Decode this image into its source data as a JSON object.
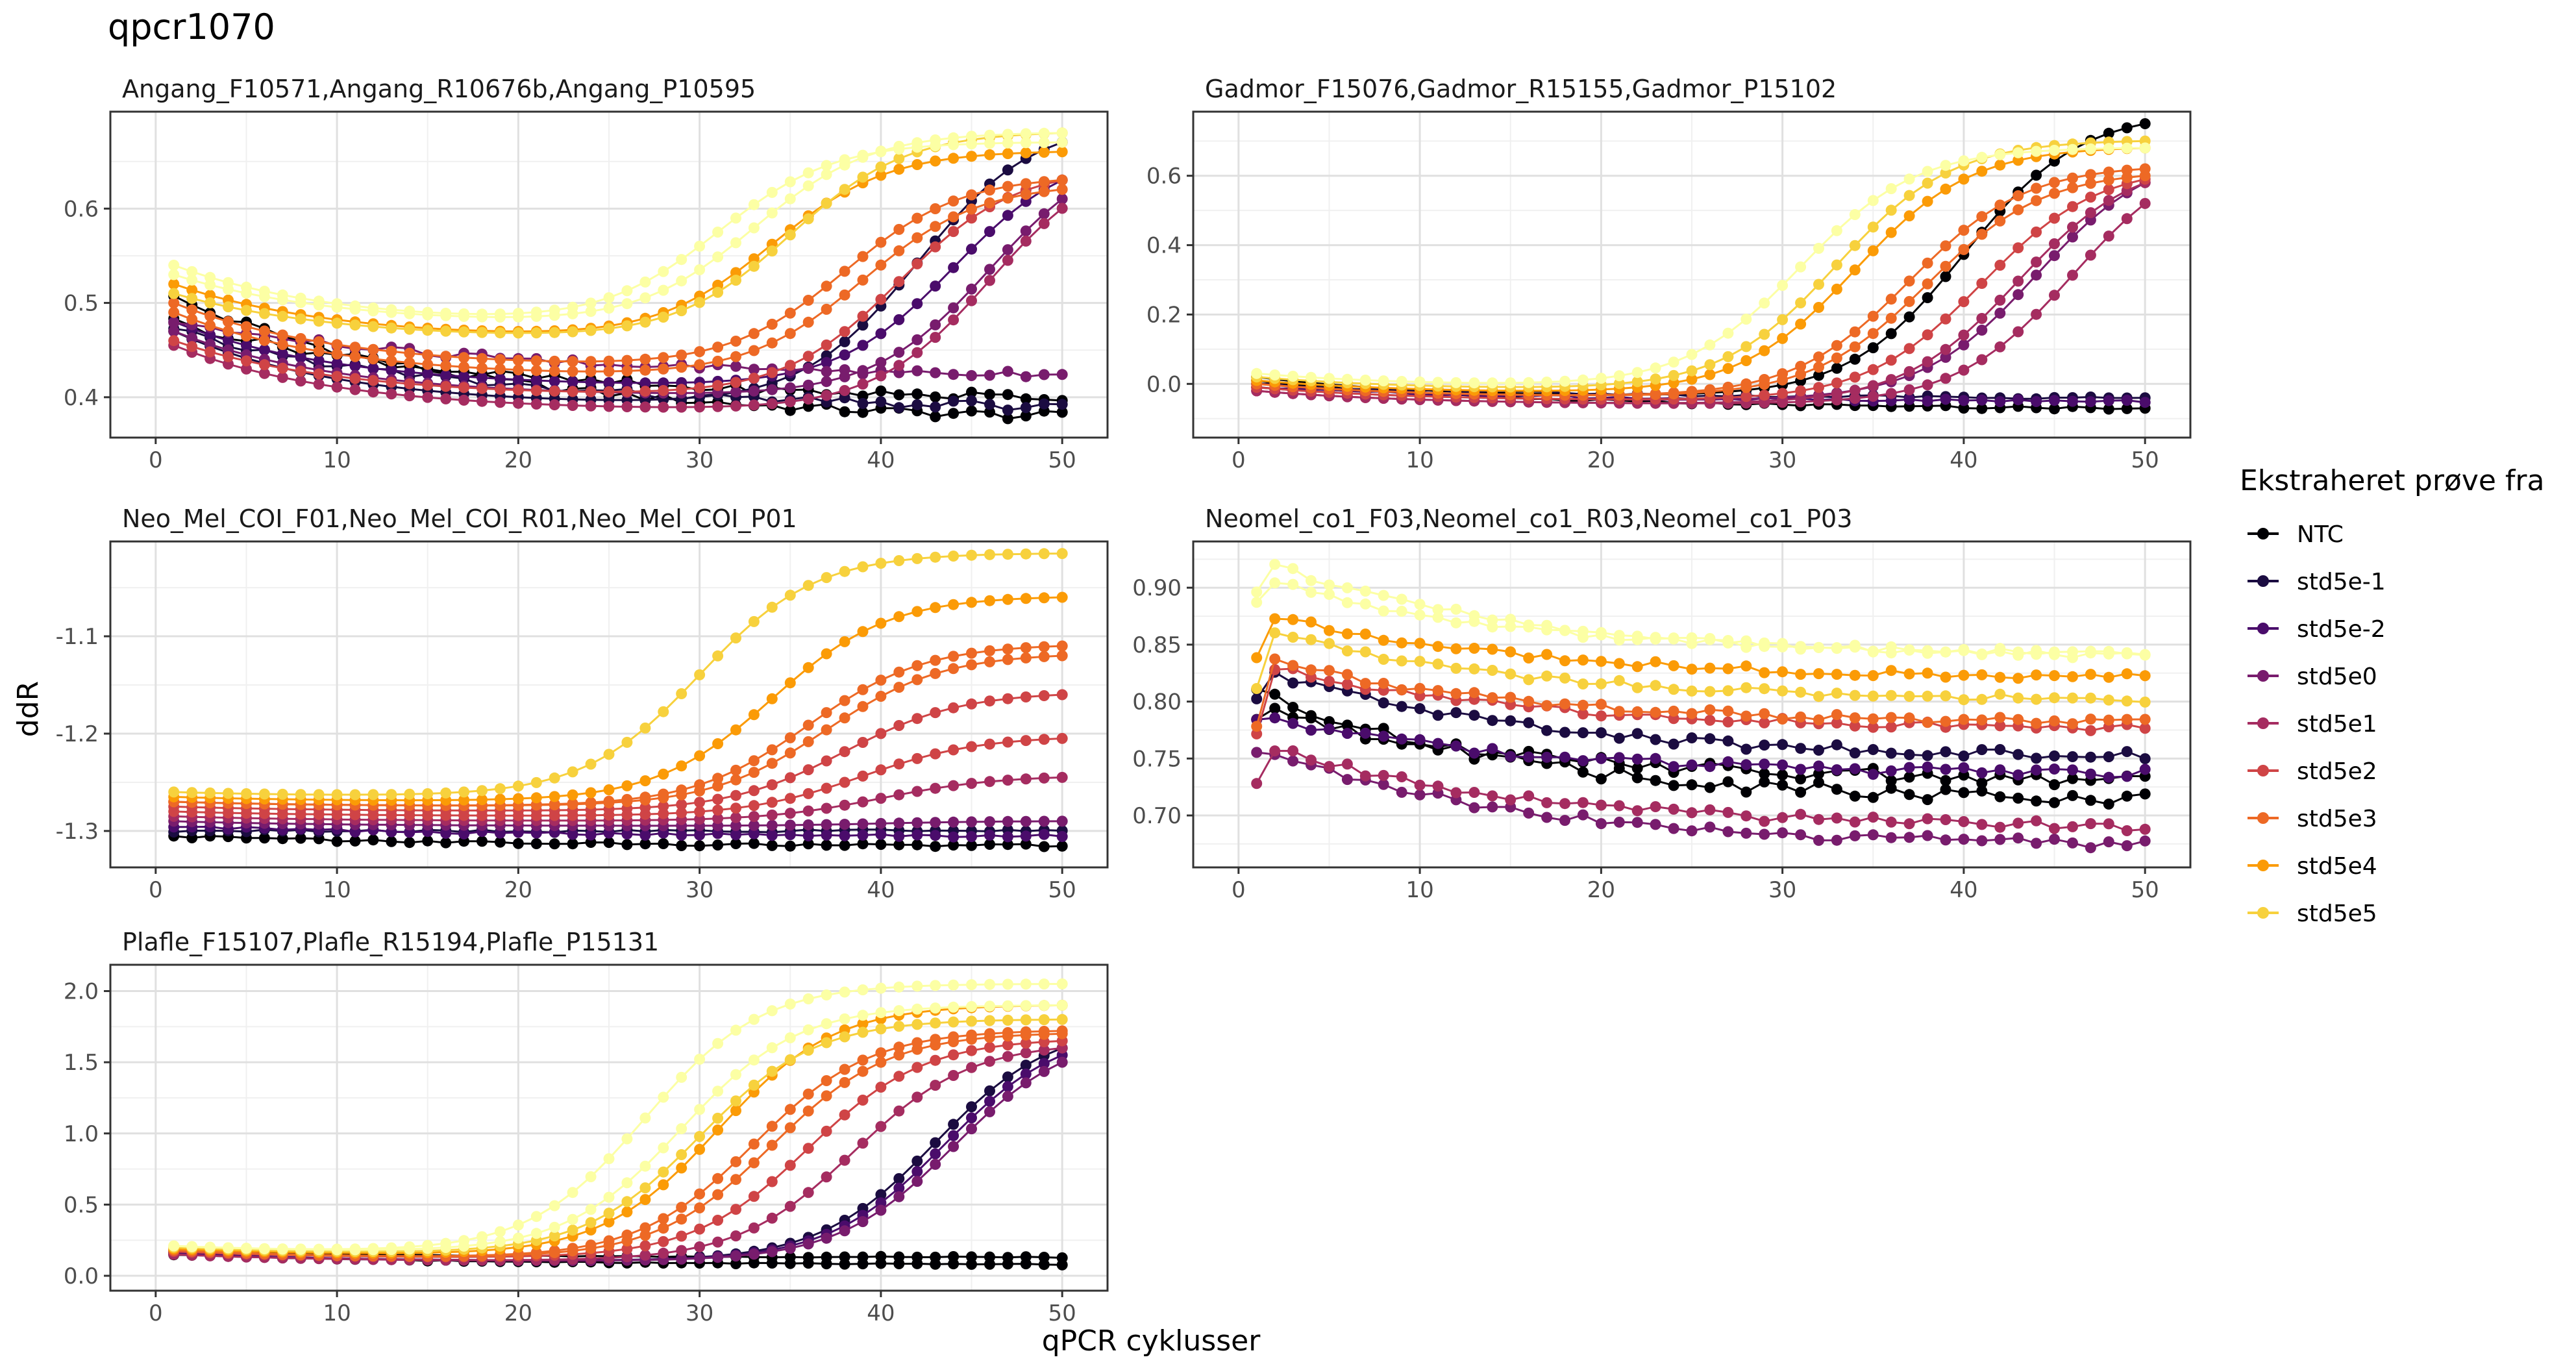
{
  "title": "qpcr1070",
  "xlabel": "qPCR cyklusser",
  "ylabel": "ddR",
  "legend": {
    "title": "Ekstraheret prøve fra",
    "entries": [
      {
        "label": "NTC",
        "color": "#000004"
      },
      {
        "label": "std5e-1",
        "color": "#1b0c41"
      },
      {
        "label": "std5e-2",
        "color": "#4a0c6b"
      },
      {
        "label": "std5e0",
        "color": "#781c6d"
      },
      {
        "label": "std5e1",
        "color": "#a52c60"
      },
      {
        "label": "std5e2",
        "color": "#cf4446"
      },
      {
        "label": "std5e3",
        "color": "#ed6925"
      },
      {
        "label": "std5e4",
        "color": "#fb9b06"
      },
      {
        "label": "std5e5",
        "color": "#f7d13d"
      }
    ]
  },
  "chart_data": [
    {
      "type": "line",
      "title": "Angang_F10571,Angang_R10676b,Angang_P10595",
      "xlim": [
        1,
        50
      ],
      "ylim": [
        0.37,
        0.69
      ],
      "xticks": [
        0,
        10,
        20,
        30,
        40,
        50
      ],
      "yticks": [
        0.4,
        0.5,
        0.6
      ],
      "series": [
        {
          "name": "NTC",
          "color": "#000004",
          "type": "flat",
          "start": 0.505,
          "end": 0.38,
          "jitter": 0.005
        },
        {
          "name": "NTC",
          "color": "#000004",
          "type": "flat",
          "start": 0.48,
          "end": 0.4,
          "jitter": 0.005
        },
        {
          "name": "std5e-1",
          "color": "#1b0c41",
          "type": "amp",
          "start": 0.47,
          "dip": 0.39,
          "ct": 42,
          "plateau": 0.67
        },
        {
          "name": "std5e-1",
          "color": "#1b0c41",
          "type": "flat",
          "start": 0.47,
          "end": 0.39,
          "jitter": 0.005
        },
        {
          "name": "std5e-2",
          "color": "#4a0c6b",
          "type": "amp",
          "start": 0.48,
          "dip": 0.41,
          "ct": 44,
          "plateau": 0.63
        },
        {
          "name": "std5e0",
          "color": "#781c6d",
          "type": "flat",
          "start": 0.48,
          "end": 0.425,
          "jitter": 0.004
        },
        {
          "name": "std5e0",
          "color": "#781c6d",
          "type": "amp",
          "start": 0.47,
          "dip": 0.4,
          "ct": 46,
          "plateau": 0.61
        },
        {
          "name": "std5e1",
          "color": "#a52c60",
          "type": "amp",
          "start": 0.455,
          "dip": 0.385,
          "ct": 46,
          "plateau": 0.6
        },
        {
          "name": "std5e2",
          "color": "#cf4446",
          "type": "amp",
          "start": 0.46,
          "dip": 0.4,
          "ct": 41,
          "plateau": 0.63
        },
        {
          "name": "std5e3",
          "color": "#ed6925",
          "type": "amp",
          "start": 0.5,
          "dip": 0.43,
          "ct": 38,
          "plateau": 0.63
        },
        {
          "name": "std5e3",
          "color": "#ed6925",
          "type": "amp",
          "start": 0.49,
          "dip": 0.42,
          "ct": 39,
          "plateau": 0.62
        },
        {
          "name": "std5e4",
          "color": "#fb9b06",
          "type": "amp",
          "start": 0.52,
          "dip": 0.46,
          "ct": 34,
          "plateau": 0.66
        },
        {
          "name": "std5e4",
          "color": "#f7d13d",
          "type": "amp",
          "start": 0.51,
          "dip": 0.46,
          "ct": 35,
          "plateau": 0.68
        },
        {
          "name": "std5e5",
          "color": "#fcffa4",
          "type": "amp",
          "start": 0.54,
          "dip": 0.475,
          "ct": 31,
          "plateau": 0.67
        },
        {
          "name": "std5e5",
          "color": "#fcffa4",
          "type": "amp",
          "start": 0.53,
          "dip": 0.475,
          "ct": 33,
          "plateau": 0.68
        }
      ]
    },
    {
      "type": "line",
      "title": "Gadmor_F15076,Gadmor_R15155,Gadmor_P15102",
      "xlim": [
        1,
        50
      ],
      "ylim": [
        -0.12,
        0.75
      ],
      "xticks": [
        0,
        10,
        20,
        30,
        40,
        50
      ],
      "yticks": [
        0.0,
        0.2,
        0.4,
        0.6
      ],
      "series": [
        {
          "name": "NTC",
          "color": "#000004",
          "type": "flat",
          "start": 0.01,
          "end": -0.07,
          "jitter": 0.004
        },
        {
          "name": "NTC",
          "color": "#000004",
          "type": "amp",
          "start": 0.02,
          "dip": -0.04,
          "ct": 40,
          "plateau": 0.75
        },
        {
          "name": "std5e-1",
          "color": "#1b0c41",
          "type": "flat",
          "start": 0.0,
          "end": -0.04,
          "jitter": 0.004
        },
        {
          "name": "std5e-2",
          "color": "#4a0c6b",
          "type": "flat",
          "start": -0.01,
          "end": -0.05,
          "jitter": 0.004
        },
        {
          "name": "std5e0",
          "color": "#781c6d",
          "type": "amp",
          "start": -0.01,
          "dip": -0.05,
          "ct": 44,
          "plateau": 0.58
        },
        {
          "name": "std5e1",
          "color": "#a52c60",
          "type": "amp",
          "start": -0.02,
          "dip": -0.06,
          "ct": 46,
          "plateau": 0.52
        },
        {
          "name": "std5e1",
          "color": "#a52c60",
          "type": "amp",
          "start": -0.02,
          "dip": -0.06,
          "ct": 43,
          "plateau": 0.58
        },
        {
          "name": "std5e2",
          "color": "#cf4446",
          "type": "amp",
          "start": -0.01,
          "dip": -0.05,
          "ct": 41,
          "plateau": 0.59
        },
        {
          "name": "std5e3",
          "color": "#ed6925",
          "type": "amp",
          "start": 0.0,
          "dip": -0.04,
          "ct": 38,
          "plateau": 0.6
        },
        {
          "name": "std5e3",
          "color": "#ed6925",
          "type": "amp",
          "start": 0.0,
          "dip": -0.04,
          "ct": 37,
          "plateau": 0.62
        },
        {
          "name": "std5e4",
          "color": "#fb9b06",
          "type": "amp",
          "start": 0.01,
          "dip": -0.03,
          "ct": 34,
          "plateau": 0.68
        },
        {
          "name": "std5e4",
          "color": "#f7d13d",
          "type": "amp",
          "start": 0.02,
          "dip": -0.02,
          "ct": 33,
          "plateau": 0.7
        },
        {
          "name": "std5e5",
          "color": "#fcffa4",
          "type": "amp",
          "start": 0.03,
          "dip": -0.01,
          "ct": 31,
          "plateau": 0.68
        }
      ]
    },
    {
      "type": "line",
      "title": "Neo_Mel_COI_F01,Neo_Mel_COI_R01,Neo_Mel_COI_P01",
      "xlim": [
        1,
        50
      ],
      "ylim": [
        -1.325,
        -1.015
      ],
      "xticks": [
        0,
        10,
        20,
        30,
        40,
        50
      ],
      "yticks": [
        -1.3,
        -1.2,
        -1.1
      ],
      "series": [
        {
          "name": "NTC",
          "color": "#000004",
          "type": "flat",
          "start": -1.305,
          "end": -1.315,
          "jitter": 0.0015
        },
        {
          "name": "std5e-1",
          "color": "#1b0c41",
          "type": "flat",
          "start": -1.3,
          "end": -1.3,
          "jitter": 0.0015
        },
        {
          "name": "std5e-2",
          "color": "#4a0c6b",
          "type": "flat",
          "start": -1.295,
          "end": -1.305,
          "jitter": 0.0015
        },
        {
          "name": "std5e0",
          "color": "#781c6d",
          "type": "amp",
          "start": -1.29,
          "dip": -1.295,
          "ct": 40,
          "plateau": -1.29
        },
        {
          "name": "std5e1",
          "color": "#a52c60",
          "type": "amp",
          "start": -1.285,
          "dip": -1.29,
          "ct": 40,
          "plateau": -1.245
        },
        {
          "name": "std5e2",
          "color": "#cf4446",
          "type": "amp",
          "start": -1.28,
          "dip": -1.285,
          "ct": 39,
          "plateau": -1.205
        },
        {
          "name": "std5e2",
          "color": "#cf4446",
          "type": "amp",
          "start": -1.275,
          "dip": -1.28,
          "ct": 38,
          "plateau": -1.16
        },
        {
          "name": "std5e3",
          "color": "#ed6925",
          "type": "amp",
          "start": -1.27,
          "dip": -1.275,
          "ct": 37,
          "plateau": -1.12
        },
        {
          "name": "std5e3",
          "color": "#ed6925",
          "type": "amp",
          "start": -1.27,
          "dip": -1.275,
          "ct": 36,
          "plateau": -1.11
        },
        {
          "name": "std5e4",
          "color": "#fb9b06",
          "type": "amp",
          "start": -1.265,
          "dip": -1.27,
          "ct": 34,
          "plateau": -1.06
        },
        {
          "name": "std5e4",
          "color": "#f7d13d",
          "type": "amp",
          "start": -1.26,
          "dip": -1.265,
          "ct": 30,
          "plateau": -1.015
        }
      ]
    },
    {
      "type": "line",
      "title": "Neomel_co1_F03,Neomel_co1_R03,Neomel_co1_P03",
      "xlim": [
        1,
        50
      ],
      "ylim": [
        0.665,
        0.93
      ],
      "xticks": [
        0,
        10,
        20,
        30,
        40,
        50
      ],
      "yticks": [
        0.7,
        0.75,
        0.8,
        0.85,
        0.9
      ],
      "series": [
        {
          "name": "NTC",
          "color": "#000004",
          "type": "decay",
          "start": 0.81,
          "peak": 0.805,
          "end": 0.712,
          "jitter": 0.006
        },
        {
          "name": "NTC",
          "color": "#000004",
          "type": "decay",
          "start": 0.79,
          "peak": 0.79,
          "end": 0.73,
          "jitter": 0.006
        },
        {
          "name": "std5e-1",
          "color": "#1b0c41",
          "type": "decay",
          "start": 0.8,
          "peak": 0.825,
          "end": 0.75,
          "jitter": 0.004
        },
        {
          "name": "std5e-2",
          "color": "#4a0c6b",
          "type": "decay",
          "start": 0.785,
          "peak": 0.785,
          "end": 0.735,
          "jitter": 0.004
        },
        {
          "name": "std5e0",
          "color": "#781c6d",
          "type": "decay",
          "start": 0.755,
          "peak": 0.755,
          "end": 0.672,
          "jitter": 0.004
        },
        {
          "name": "std5e1",
          "color": "#a52c60",
          "type": "decay",
          "start": 0.727,
          "peak": 0.76,
          "end": 0.688,
          "jitter": 0.004
        },
        {
          "name": "std5e2",
          "color": "#cf4446",
          "type": "decay",
          "start": 0.77,
          "peak": 0.83,
          "end": 0.775,
          "jitter": 0.003
        },
        {
          "name": "std5e3",
          "color": "#ed6925",
          "type": "decay",
          "start": 0.78,
          "peak": 0.835,
          "end": 0.78,
          "jitter": 0.003
        },
        {
          "name": "std5e4",
          "color": "#fb9b06",
          "type": "decay",
          "start": 0.84,
          "peak": 0.875,
          "end": 0.82,
          "jitter": 0.003
        },
        {
          "name": "std5e4",
          "color": "#f7d13d",
          "type": "decay",
          "start": 0.81,
          "peak": 0.86,
          "end": 0.8,
          "jitter": 0.003
        },
        {
          "name": "std5e5",
          "color": "#fcffa4",
          "type": "decay",
          "start": 0.895,
          "peak": 0.92,
          "end": 0.838,
          "jitter": 0.003
        },
        {
          "name": "std5e5",
          "color": "#fcffa4",
          "type": "decay",
          "start": 0.885,
          "peak": 0.905,
          "end": 0.84,
          "jitter": 0.003
        }
      ]
    },
    {
      "type": "line",
      "title": "Plafle_F15107,Plafle_R15194,Plafle_P15131",
      "xlim": [
        1,
        50
      ],
      "ylim": [
        -0.02,
        2.1
      ],
      "xticks": [
        0,
        10,
        20,
        30,
        40,
        50
      ],
      "yticks": [
        0.0,
        0.5,
        1.0,
        1.5,
        2.0
      ],
      "series": [
        {
          "name": "NTC",
          "color": "#000004",
          "type": "flat",
          "start": 0.15,
          "end": 0.08,
          "jitter": 0.004
        },
        {
          "name": "NTC",
          "color": "#000004",
          "type": "flat",
          "start": 0.17,
          "end": 0.13,
          "jitter": 0.004
        },
        {
          "name": "std5e-1",
          "color": "#1b0c41",
          "type": "amp",
          "start": 0.16,
          "dip": 0.1,
          "ct": 43,
          "plateau": 1.6
        },
        {
          "name": "std5e-2",
          "color": "#4a0c6b",
          "type": "amp",
          "start": 0.16,
          "dip": 0.1,
          "ct": 43.5,
          "plateau": 1.55
        },
        {
          "name": "std5e0",
          "color": "#781c6d",
          "type": "amp",
          "start": 0.15,
          "dip": 0.1,
          "ct": 44,
          "plateau": 1.5
        },
        {
          "name": "std5e1",
          "color": "#a52c60",
          "type": "amp",
          "start": 0.15,
          "dip": 0.1,
          "ct": 38.5,
          "plateau": 1.6
        },
        {
          "name": "std5e2",
          "color": "#cf4446",
          "type": "amp",
          "start": 0.17,
          "dip": 0.12,
          "ct": 36,
          "plateau": 1.65
        },
        {
          "name": "std5e3",
          "color": "#ed6925",
          "type": "amp",
          "start": 0.18,
          "dip": 0.12,
          "ct": 34,
          "plateau": 1.7
        },
        {
          "name": "std5e3",
          "color": "#ed6925",
          "type": "amp",
          "start": 0.18,
          "dip": 0.12,
          "ct": 33,
          "plateau": 1.72
        },
        {
          "name": "std5e4",
          "color": "#fb9b06",
          "type": "amp",
          "start": 0.19,
          "dip": 0.14,
          "ct": 31,
          "plateau": 1.9
        },
        {
          "name": "std5e4",
          "color": "#f7d13d",
          "type": "amp",
          "start": 0.2,
          "dip": 0.15,
          "ct": 30,
          "plateau": 1.8
        },
        {
          "name": "std5e5",
          "color": "#fcffa4",
          "type": "amp",
          "start": 0.21,
          "dip": 0.16,
          "ct": 27,
          "plateau": 2.05
        },
        {
          "name": "std5e5",
          "color": "#fcffa4",
          "type": "amp",
          "start": 0.21,
          "dip": 0.16,
          "ct": 29,
          "plateau": 1.9
        }
      ]
    }
  ]
}
